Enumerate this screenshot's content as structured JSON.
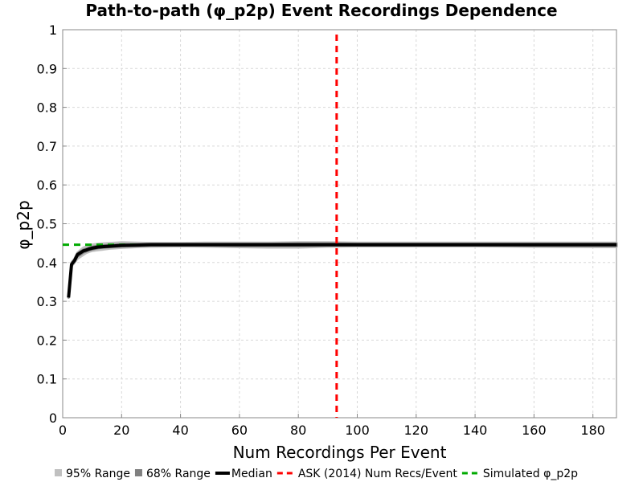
{
  "chart_data": {
    "type": "line",
    "title": "Path-to-path (φ_p2p) Event Recordings Dependence",
    "xlabel": "Num Recordings Per Event",
    "ylabel": "φ_p2p",
    "xlim": [
      0,
      188
    ],
    "ylim": [
      0,
      1
    ],
    "x_ticks": [
      0,
      20,
      40,
      60,
      80,
      100,
      120,
      140,
      160,
      180
    ],
    "y_ticks": [
      0,
      0.1,
      0.2,
      0.3,
      0.4,
      0.5,
      0.6,
      0.7,
      0.8,
      0.9,
      1
    ],
    "y_tick_labels": [
      "0",
      "0.1",
      "0.2",
      "0.3",
      "0.4",
      "0.5",
      "0.6",
      "0.7",
      "0.8",
      "0.9",
      "1"
    ],
    "grid": true,
    "legend_position": "bottom",
    "legend": [
      {
        "label": "95% Range",
        "kind": "swatch",
        "color": "#c0c0c0"
      },
      {
        "label": "68% Range",
        "kind": "swatch",
        "color": "#808080"
      },
      {
        "label": "Median",
        "kind": "line",
        "color": "#000000"
      },
      {
        "label": "ASK (2014) Num Recs/Event",
        "kind": "dash",
        "color": "#ff0000"
      },
      {
        "label": "Simulated φ_p2p",
        "kind": "dash",
        "color": "#00aa00"
      }
    ],
    "series": [
      {
        "name": "Median",
        "color": "#000000",
        "x": [
          2,
          3,
          4,
          5,
          6,
          7,
          8,
          9,
          10,
          12,
          14,
          16,
          18,
          20,
          25,
          30,
          40,
          50,
          60,
          70,
          80,
          90,
          100,
          120,
          140,
          160,
          188
        ],
        "y": [
          0.31,
          0.395,
          0.405,
          0.42,
          0.425,
          0.43,
          0.432,
          0.435,
          0.437,
          0.44,
          0.441,
          0.442,
          0.443,
          0.444,
          0.445,
          0.446,
          0.446,
          0.446,
          0.446,
          0.446,
          0.446,
          0.446,
          0.446,
          0.446,
          0.446,
          0.446,
          0.446
        ]
      },
      {
        "name": "95% Range",
        "color": "#c0c0c0",
        "x": [
          2,
          3,
          4,
          5,
          6,
          7,
          8,
          9,
          10,
          12,
          14,
          16,
          18,
          20,
          25,
          30,
          40,
          50,
          60,
          70,
          80,
          90,
          100,
          120,
          140,
          160,
          188
        ],
        "lower": [
          0.31,
          0.39,
          0.4,
          0.41,
          0.415,
          0.42,
          0.425,
          0.428,
          0.43,
          0.432,
          0.434,
          0.436,
          0.437,
          0.438,
          0.44,
          0.441,
          0.442,
          0.441,
          0.44,
          0.439,
          0.439,
          0.441,
          0.442,
          0.442,
          0.442,
          0.441,
          0.44
        ],
        "upper": [
          0.31,
          0.4,
          0.41,
          0.425,
          0.432,
          0.438,
          0.441,
          0.444,
          0.446,
          0.448,
          0.449,
          0.45,
          0.451,
          0.452,
          0.451,
          0.45,
          0.45,
          0.451,
          0.451,
          0.451,
          0.452,
          0.452,
          0.451,
          0.451,
          0.451,
          0.451,
          0.451
        ]
      },
      {
        "name": "68% Range",
        "color": "#808080",
        "x": [
          2,
          3,
          4,
          5,
          6,
          7,
          8,
          9,
          10,
          12,
          14,
          16,
          18,
          20,
          25,
          30,
          40,
          50,
          60,
          70,
          80,
          90,
          100,
          120,
          140,
          160,
          188
        ],
        "lower": [
          0.31,
          0.393,
          0.403,
          0.416,
          0.421,
          0.426,
          0.429,
          0.432,
          0.434,
          0.437,
          0.439,
          0.44,
          0.441,
          0.442,
          0.443,
          0.444,
          0.444,
          0.444,
          0.443,
          0.443,
          0.443,
          0.444,
          0.444,
          0.444,
          0.444,
          0.443,
          0.443
        ],
        "upper": [
          0.31,
          0.397,
          0.407,
          0.423,
          0.428,
          0.433,
          0.435,
          0.438,
          0.44,
          0.443,
          0.444,
          0.445,
          0.446,
          0.447,
          0.447,
          0.448,
          0.448,
          0.448,
          0.448,
          0.448,
          0.449,
          0.449,
          0.448,
          0.448,
          0.448,
          0.448,
          0.448
        ]
      }
    ],
    "reference_lines": [
      {
        "name": "ASK (2014) Num Recs/Event",
        "orientation": "vertical",
        "value": 93,
        "color": "#ff0000"
      },
      {
        "name": "Simulated φ_p2p",
        "orientation": "horizontal",
        "value": 0.446,
        "color": "#00aa00"
      }
    ]
  }
}
